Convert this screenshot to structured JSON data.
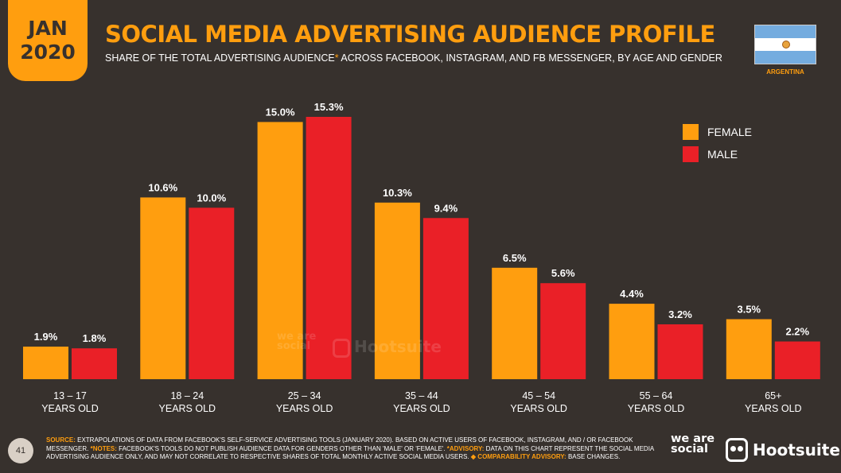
{
  "header": {
    "date_month": "JAN",
    "date_year": "2020",
    "title": "SOCIAL MEDIA ADVERTISING AUDIENCE PROFILE",
    "subtitle_pre": "SHARE OF THE TOTAL ADVERTISING AUDIENCE",
    "subtitle_star": "*",
    "subtitle_post": " ACROSS FACEBOOK, INSTAGRAM, AND FB MESSENGER, BY AGE AND GENDER",
    "country": "ARGENTINA"
  },
  "colors": {
    "background": "#37312d",
    "accent": "#ff9e0f",
    "female": "#ff9e0f",
    "male": "#ea2027"
  },
  "chart_data": {
    "type": "bar",
    "categories": [
      {
        "line1": "13 – 17",
        "line2": "YEARS OLD"
      },
      {
        "line1": "18 – 24",
        "line2": "YEARS OLD"
      },
      {
        "line1": "25 – 34",
        "line2": "YEARS OLD"
      },
      {
        "line1": "35 – 44",
        "line2": "YEARS OLD"
      },
      {
        "line1": "45 – 54",
        "line2": "YEARS OLD"
      },
      {
        "line1": "55 – 64",
        "line2": "YEARS OLD"
      },
      {
        "line1": "65+",
        "line2": "YEARS OLD"
      }
    ],
    "series": [
      {
        "name": "FEMALE",
        "color": "#ff9e0f",
        "values": [
          1.9,
          10.6,
          15.0,
          10.3,
          6.5,
          4.4,
          3.5
        ],
        "labels": [
          "1.9%",
          "10.6%",
          "15.0%",
          "10.3%",
          "6.5%",
          "4.4%",
          "3.5%"
        ]
      },
      {
        "name": "MALE",
        "color": "#ea2027",
        "values": [
          1.8,
          10.0,
          15.3,
          9.4,
          5.6,
          3.2,
          2.2
        ],
        "labels": [
          "1.8%",
          "10.0%",
          "15.3%",
          "9.4%",
          "5.6%",
          "3.2%",
          "2.2%"
        ]
      }
    ],
    "unit": "%",
    "ylim": [
      0,
      15.3
    ],
    "grid": false,
    "legend_position": "top-right"
  },
  "watermark": {
    "we_are_social": "we are social",
    "hootsuite": "Hootsuite"
  },
  "footer": {
    "page_number": "41",
    "source_label": "SOURCE:",
    "source_text": " EXTRAPOLATIONS OF DATA FROM FACEBOOK'S SELF-SERVICE ADVERTISING TOOLS (JANUARY 2020). BASED ON ACTIVE USERS OF FACEBOOK, INSTAGRAM, AND / OR FACEBOOK MESSENGER. ",
    "notes_label": "*NOTES:",
    "notes_text": " FACEBOOK'S TOOLS DO NOT PUBLISH AUDIENCE DATA FOR GENDERS OTHER THAN 'MALE' OR 'FEMALE'. ",
    "advisory_label": "*ADVISORY:",
    "advisory_text": " DATA ON THIS CHART REPRESENT THE SOCIAL MEDIA ADVERTISING AUDIENCE ONLY, AND MAY NOT CORRELATE TO RESPECTIVE SHARES OF TOTAL MONTHLY ACTIVE SOCIAL MEDIA USERS. ",
    "comparability_label": "◆ COMPARABILITY ADVISORY:",
    "comparability_text": " BASE CHANGES.",
    "logo_we_are_social": "we are social",
    "logo_hootsuite": "Hootsuite"
  }
}
